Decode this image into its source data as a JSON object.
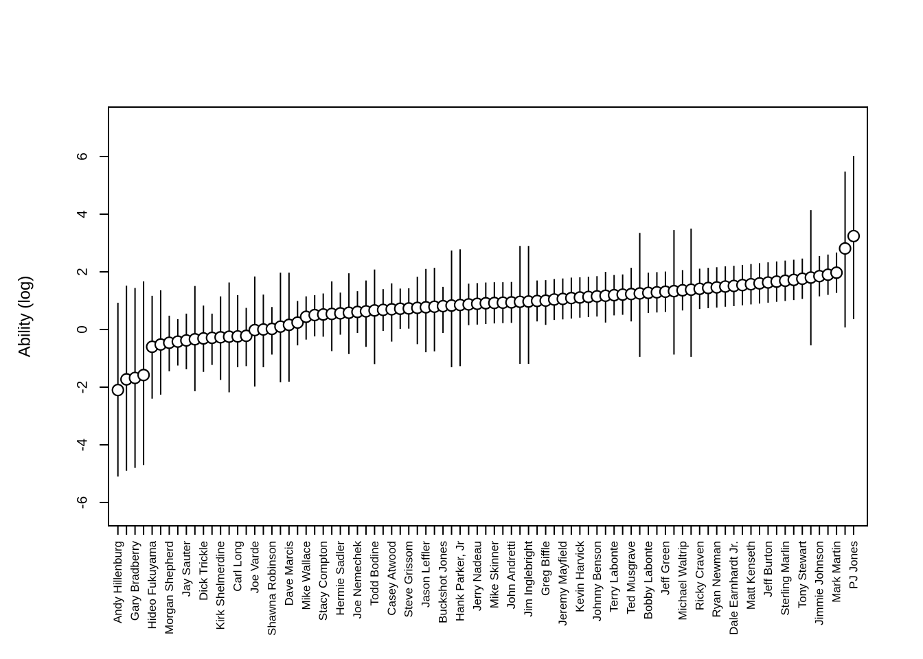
{
  "figure": {
    "background": "#ffffff",
    "ink_color": "#000000",
    "marker_fill": "#ffffff"
  },
  "chart_data": {
    "type": "scatter",
    "subtype": "point-estimates-with-interval-bars",
    "title": "",
    "xlabel": "",
    "ylabel": "Ability (log)",
    "grid": false,
    "legend": "none",
    "marker": "open-circle",
    "interval_style": "vertical-line",
    "y_ticks": [
      -6,
      -4,
      -2,
      0,
      2,
      4,
      6
    ],
    "y_tick_labels": [
      "-6",
      "-4",
      "-2",
      "0",
      "2",
      "4",
      "6"
    ],
    "ylim": [
      -9.2,
      7.7
    ],
    "x_label_rotation": 90,
    "points": [
      {
        "label": "Andy Hillenburg",
        "est": -2.1,
        "lo": -5.1,
        "hi": 0.93
      },
      {
        "label": null,
        "est": -1.73,
        "lo": -4.9,
        "hi": 1.52
      },
      {
        "label": "Gary Bradberry",
        "est": -1.68,
        "lo": -4.8,
        "hi": 1.44
      },
      {
        "label": null,
        "est": -1.58,
        "lo": -4.7,
        "hi": 1.67
      },
      {
        "label": "Hideo Fukuyama",
        "est": -0.6,
        "lo": -2.4,
        "hi": 1.17
      },
      {
        "label": null,
        "est": -0.52,
        "lo": -2.26,
        "hi": 1.36
      },
      {
        "label": "Morgan Shepherd",
        "est": -0.46,
        "lo": -1.45,
        "hi": 0.48
      },
      {
        "label": null,
        "est": -0.42,
        "lo": -1.25,
        "hi": 0.36
      },
      {
        "label": "Jay Sauter",
        "est": -0.38,
        "lo": -1.38,
        "hi": 0.55
      },
      {
        "label": null,
        "est": -0.34,
        "lo": -2.14,
        "hi": 1.51
      },
      {
        "label": "Dick Trickle",
        "est": -0.31,
        "lo": -1.47,
        "hi": 0.83
      },
      {
        "label": null,
        "est": -0.29,
        "lo": -1.23,
        "hi": 0.55
      },
      {
        "label": "Kirk Shelmerdine",
        "est": -0.27,
        "lo": -1.75,
        "hi": 1.15
      },
      {
        "label": null,
        "est": -0.25,
        "lo": -2.18,
        "hi": 1.63
      },
      {
        "label": "Carl Long",
        "est": -0.24,
        "lo": -1.31,
        "hi": 1.19
      },
      {
        "label": null,
        "est": -0.22,
        "lo": -1.27,
        "hi": 0.75
      },
      {
        "label": "Joe Varde",
        "est": -0.02,
        "lo": -1.98,
        "hi": 1.84
      },
      {
        "label": null,
        "est": 0.0,
        "lo": -1.31,
        "hi": 1.21
      },
      {
        "label": "Shawna Robinson",
        "est": 0.02,
        "lo": -0.87,
        "hi": 0.78
      },
      {
        "label": null,
        "est": 0.1,
        "lo": -1.83,
        "hi": 1.97
      },
      {
        "label": "Dave Marcis",
        "est": 0.16,
        "lo": -1.81,
        "hi": 1.97
      },
      {
        "label": null,
        "est": 0.24,
        "lo": -0.55,
        "hi": 0.99
      },
      {
        "label": "Mike Wallace",
        "est": 0.44,
        "lo": -0.35,
        "hi": 1.15
      },
      {
        "label": null,
        "est": 0.5,
        "lo": -0.24,
        "hi": 1.19
      },
      {
        "label": "Stacy Compton",
        "est": 0.52,
        "lo": -0.25,
        "hi": 1.25
      },
      {
        "label": null,
        "est": 0.54,
        "lo": -0.75,
        "hi": 1.67
      },
      {
        "label": "Hermie Sadler",
        "est": 0.56,
        "lo": -0.18,
        "hi": 1.28
      },
      {
        "label": null,
        "est": 0.58,
        "lo": -0.85,
        "hi": 1.95
      },
      {
        "label": "Joe Nemechek",
        "est": 0.61,
        "lo": -0.12,
        "hi": 1.33
      },
      {
        "label": null,
        "est": 0.63,
        "lo": -0.6,
        "hi": 1.7
      },
      {
        "label": "Todd Bodine",
        "est": 0.66,
        "lo": -1.2,
        "hi": 2.08
      },
      {
        "label": null,
        "est": 0.68,
        "lo": -0.05,
        "hi": 1.4
      },
      {
        "label": "Casey Atwood",
        "est": 0.7,
        "lo": -0.42,
        "hi": 1.6
      },
      {
        "label": null,
        "est": 0.72,
        "lo": 0.02,
        "hi": 1.42
      },
      {
        "label": "Steve Grissom",
        "est": 0.73,
        "lo": 0.03,
        "hi": 1.43
      },
      {
        "label": null,
        "est": 0.75,
        "lo": -0.51,
        "hi": 1.83
      },
      {
        "label": "Jason Leffler",
        "est": 0.77,
        "lo": -0.79,
        "hi": 2.1
      },
      {
        "label": null,
        "est": 0.79,
        "lo": -0.76,
        "hi": 2.14
      },
      {
        "label": "Buckshot Jones",
        "est": 0.81,
        "lo": -0.12,
        "hi": 1.48
      },
      {
        "label": null,
        "est": 0.83,
        "lo": -1.31,
        "hi": 2.74
      },
      {
        "label": "Hank Parker, Jr",
        "est": 0.85,
        "lo": -1.27,
        "hi": 2.78
      },
      {
        "label": null,
        "est": 0.87,
        "lo": 0.15,
        "hi": 1.59
      },
      {
        "label": "Jerry Nadeau",
        "est": 0.89,
        "lo": 0.17,
        "hi": 1.61
      },
      {
        "label": null,
        "est": 0.91,
        "lo": 0.19,
        "hi": 1.63
      },
      {
        "label": "Mike Skinner",
        "est": 0.92,
        "lo": 0.21,
        "hi": 1.64
      },
      {
        "label": null,
        "est": 0.93,
        "lo": 0.22,
        "hi": 1.64
      },
      {
        "label": "John Andretti",
        "est": 0.94,
        "lo": 0.23,
        "hi": 1.65
      },
      {
        "label": null,
        "est": 0.96,
        "lo": -1.19,
        "hi": 2.9
      },
      {
        "label": "Jim Inglebright",
        "est": 0.97,
        "lo": -1.19,
        "hi": 2.9
      },
      {
        "label": null,
        "est": 0.99,
        "lo": 0.28,
        "hi": 1.7
      },
      {
        "label": "Greg Biffle",
        "est": 1.0,
        "lo": 0.16,
        "hi": 1.71
      },
      {
        "label": null,
        "est": 1.04,
        "lo": 0.33,
        "hi": 1.75
      },
      {
        "label": "Jeremy Mayfield",
        "est": 1.06,
        "lo": 0.35,
        "hi": 1.77
      },
      {
        "label": null,
        "est": 1.09,
        "lo": 0.38,
        "hi": 1.8
      },
      {
        "label": "Kevin Harvick",
        "est": 1.11,
        "lo": 0.41,
        "hi": 1.81
      },
      {
        "label": null,
        "est": 1.13,
        "lo": 0.43,
        "hi": 1.83
      },
      {
        "label": "Johnny Benson",
        "est": 1.15,
        "lo": 0.45,
        "hi": 1.85
      },
      {
        "label": null,
        "est": 1.17,
        "lo": 0.24,
        "hi": 2.0
      },
      {
        "label": "Terry Labonte",
        "est": 1.19,
        "lo": 0.49,
        "hi": 1.89
      },
      {
        "label": null,
        "est": 1.21,
        "lo": 0.51,
        "hi": 1.91
      },
      {
        "label": "Ted Musgrave",
        "est": 1.23,
        "lo": 0.28,
        "hi": 2.14
      },
      {
        "label": null,
        "est": 1.25,
        "lo": -0.95,
        "hi": 3.35
      },
      {
        "label": "Bobby Labonte",
        "est": 1.27,
        "lo": 0.57,
        "hi": 1.97
      },
      {
        "label": null,
        "est": 1.29,
        "lo": 0.59,
        "hi": 1.99
      },
      {
        "label": "Jeff Green",
        "est": 1.31,
        "lo": 0.61,
        "hi": 2.01
      },
      {
        "label": null,
        "est": 1.33,
        "lo": -0.87,
        "hi": 3.45
      },
      {
        "label": "Michael Waltrip",
        "est": 1.36,
        "lo": 0.66,
        "hi": 2.06
      },
      {
        "label": null,
        "est": 1.38,
        "lo": -0.95,
        "hi": 3.5
      },
      {
        "label": "Ricky Craven",
        "est": 1.41,
        "lo": 0.71,
        "hi": 2.11
      },
      {
        "label": null,
        "est": 1.44,
        "lo": 0.74,
        "hi": 2.14
      },
      {
        "label": "Ryan Newman",
        "est": 1.46,
        "lo": 0.76,
        "hi": 2.16
      },
      {
        "label": null,
        "est": 1.49,
        "lo": 0.79,
        "hi": 2.19
      },
      {
        "label": "Dale Earnhardt Jr.",
        "est": 1.51,
        "lo": 0.81,
        "hi": 2.21
      },
      {
        "label": null,
        "est": 1.54,
        "lo": 0.84,
        "hi": 2.24
      },
      {
        "label": "Matt Kenseth",
        "est": 1.57,
        "lo": 0.87,
        "hi": 2.27
      },
      {
        "label": null,
        "est": 1.6,
        "lo": 0.9,
        "hi": 2.3
      },
      {
        "label": "Jeff Burton",
        "est": 1.63,
        "lo": 0.93,
        "hi": 2.33
      },
      {
        "label": null,
        "est": 1.66,
        "lo": 0.96,
        "hi": 2.36
      },
      {
        "label": "Sterling Marlin",
        "est": 1.69,
        "lo": 0.99,
        "hi": 2.39
      },
      {
        "label": null,
        "est": 1.72,
        "lo": 1.02,
        "hi": 2.42
      },
      {
        "label": "Tony Stewart",
        "est": 1.76,
        "lo": 1.06,
        "hi": 2.46
      },
      {
        "label": null,
        "est": 1.8,
        "lo": -0.55,
        "hi": 4.14
      },
      {
        "label": "Jimmie Johnson",
        "est": 1.85,
        "lo": 1.15,
        "hi": 2.55
      },
      {
        "label": null,
        "est": 1.9,
        "lo": 1.2,
        "hi": 2.6
      },
      {
        "label": "Mark Martin",
        "est": 1.97,
        "lo": 1.27,
        "hi": 2.67
      },
      {
        "label": null,
        "est": 2.81,
        "lo": 0.07,
        "hi": 5.48
      },
      {
        "label": "PJ Jones",
        "est": 3.24,
        "lo": 0.36,
        "hi": 6.02
      }
    ]
  }
}
